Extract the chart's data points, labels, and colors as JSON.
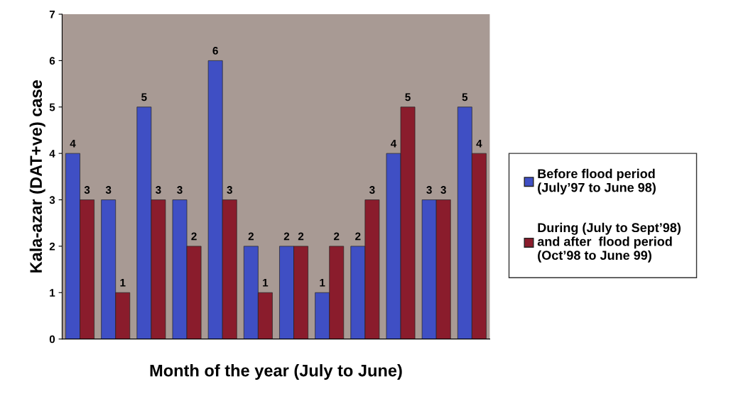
{
  "chart_data": {
    "type": "bar",
    "xlabel": "Month of the year (July to June)",
    "ylabel": "Kala-azar (DAT+ve) case",
    "categories": [
      null,
      null,
      null,
      null,
      null,
      null,
      null,
      null,
      null,
      null,
      null,
      null
    ],
    "series": [
      {
        "name": "Before flood period\n(July’97 to June 98)",
        "color": "#3f4fc4",
        "values": [
          4,
          3,
          5,
          3,
          6,
          2,
          2,
          1,
          2,
          4,
          3,
          5
        ]
      },
      {
        "name": "During (July to Sept’98)\nand after  flood period\n(Oct’98 to June 99)",
        "color": "#8a1c2c",
        "values": [
          3,
          1,
          3,
          2,
          3,
          1,
          2,
          2,
          3,
          5,
          3,
          4
        ]
      }
    ],
    "ylim": [
      0,
      7
    ],
    "yticks": [
      0,
      1,
      2,
      3,
      4,
      5,
      6,
      7
    ],
    "data_labels": true,
    "legend": "right",
    "grid": false
  }
}
